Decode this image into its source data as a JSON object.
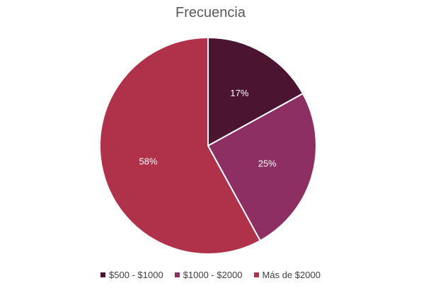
{
  "chart_data": {
    "type": "pie",
    "title": "Frecuencia",
    "categories": [
      "$500 - $1000",
      "$1000 - $2000",
      "Más de $2000"
    ],
    "values": [
      17,
      25,
      58
    ],
    "data_labels": [
      "17%",
      "25%",
      "58%"
    ],
    "colors": [
      "#4b1532",
      "#8e2f63",
      "#b0314a"
    ],
    "legend_position": "bottom"
  }
}
